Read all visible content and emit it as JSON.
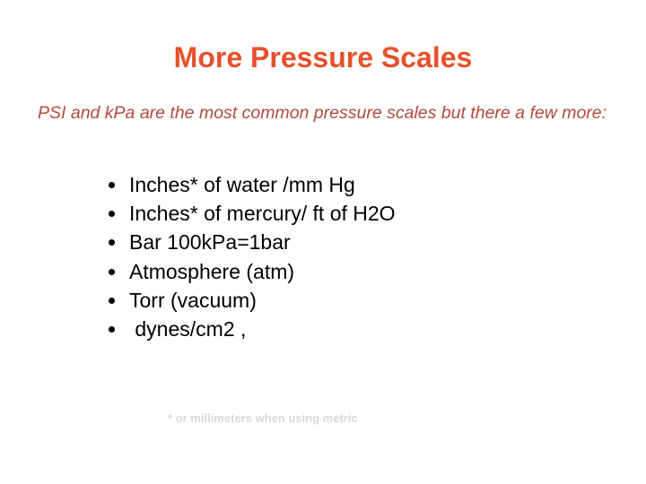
{
  "title": "More Pressure Scales",
  "intro": "PSI and kPa are the most common pressure scales but there a few more:",
  "items": [
    "Inches* of water /mm Hg",
    "Inches* of mercury/ ft of H2O",
    "Bar 100kPa=1bar",
    "Atmosphere (atm)",
    "Torr (vacuum)",
    " dynes/cm2 ,"
  ],
  "footnote": "* or millimeters when using metric"
}
